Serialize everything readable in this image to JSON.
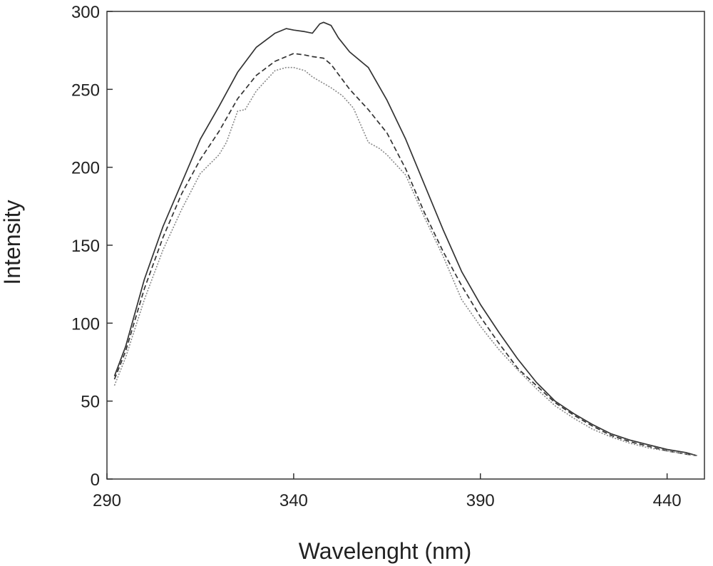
{
  "chart_data": {
    "type": "line",
    "title": "",
    "xlabel": "Wavelenght (nm)",
    "ylabel": "Intensity",
    "xlim": [
      290,
      450
    ],
    "ylim": [
      0,
      300
    ],
    "xticks": [
      "290",
      "340",
      "390",
      "440"
    ],
    "yticks": [
      "0",
      "50",
      "100",
      "150",
      "200",
      "250",
      "300"
    ],
    "grid": false,
    "legend": "none",
    "series": [
      {
        "style": "solid",
        "color": "#333333",
        "x": [
          292,
          295,
          300,
          305,
          310,
          315,
          320,
          325,
          330,
          335,
          338,
          340,
          343,
          345,
          347,
          348,
          350,
          352,
          355,
          360,
          365,
          370,
          375,
          380,
          385,
          390,
          395,
          400,
          405,
          410,
          415,
          420,
          425,
          430,
          435,
          440,
          445,
          448
        ],
        "y": [
          66,
          85,
          128,
          162,
          190,
          218,
          239,
          261,
          277,
          286,
          289,
          288,
          287,
          286,
          292,
          293,
          291,
          283,
          274,
          264,
          243,
          218,
          189,
          160,
          133,
          112,
          94,
          77,
          62,
          50,
          42,
          35,
          29,
          25,
          22,
          19,
          17,
          15
        ]
      },
      {
        "style": "dashed",
        "color": "#333333",
        "x": [
          292,
          295,
          300,
          305,
          310,
          315,
          320,
          325,
          330,
          335,
          340,
          343,
          345,
          348,
          350,
          355,
          360,
          365,
          370,
          375,
          380,
          385,
          390,
          395,
          400,
          405,
          410,
          415,
          420,
          425,
          430,
          435,
          440,
          445,
          448
        ],
        "y": [
          64,
          82,
          122,
          155,
          183,
          205,
          223,
          244,
          259,
          268,
          273,
          272,
          271,
          270,
          266,
          250,
          237,
          222,
          199,
          171,
          146,
          124,
          104,
          87,
          71,
          60,
          49,
          41,
          34,
          28,
          24,
          21,
          18,
          16,
          15
        ]
      },
      {
        "style": "dotted",
        "color": "#888888",
        "x": [
          292,
          295,
          300,
          305,
          310,
          315,
          320,
          322,
          325,
          327,
          330,
          335,
          338,
          340,
          343,
          345,
          350,
          353,
          356,
          360,
          363,
          365,
          370,
          375,
          380,
          385,
          390,
          395,
          400,
          405,
          410,
          415,
          420,
          425,
          430,
          435,
          440,
          445,
          448
        ],
        "y": [
          60,
          78,
          115,
          147,
          173,
          196,
          208,
          216,
          236,
          237,
          249,
          262,
          264,
          264,
          262,
          258,
          251,
          246,
          238,
          216,
          212,
          208,
          195,
          168,
          143,
          115,
          98,
          83,
          70,
          58,
          47,
          39,
          32,
          27,
          23,
          20,
          18,
          16,
          15
        ]
      }
    ]
  }
}
